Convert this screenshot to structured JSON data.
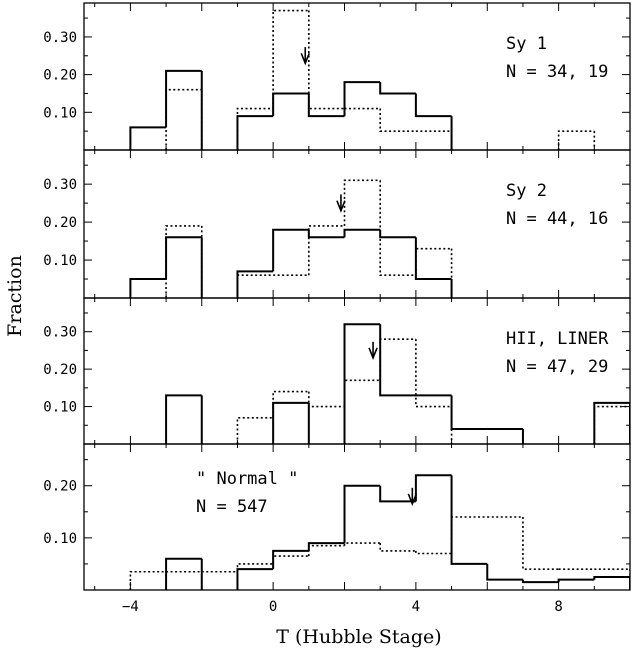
{
  "chart_data": {
    "type": "bar",
    "xlabel": "T (Hubble Stage)",
    "ylabel": "Fraction",
    "xlim": [
      -5.3,
      10
    ],
    "x_ticks": [
      -4,
      0,
      4,
      8
    ],
    "x_tick_labels": [
      "−4",
      "0",
      "4",
      "8"
    ],
    "bin_edges": [
      -4,
      -3,
      -2,
      -1,
      0,
      1,
      2,
      3,
      4,
      5,
      6,
      7,
      8,
      9,
      10
    ],
    "panels": [
      {
        "name": "sy1",
        "label_line1": "Sy 1",
        "label_line2": "N = 34, 19",
        "ylim": [
          0,
          0.39
        ],
        "y_ticks": [
          0.1,
          0.2,
          0.3
        ],
        "y_tick_labels": [
          "0.10",
          "0.20",
          "0.30"
        ],
        "series": [
          {
            "style": "solid",
            "values": [
              0.06,
              0.21,
              0,
              0.09,
              0.15,
              0.09,
              0.18,
              0.15,
              0.09,
              0,
              0,
              0,
              0,
              0
            ]
          },
          {
            "style": "dotted",
            "values": [
              0,
              0.16,
              0,
              0.11,
              0.37,
              0.11,
              0.11,
              0.05,
              0.05,
              0,
              0,
              0,
              0.05,
              0
            ]
          }
        ],
        "arrow_x": 0.9
      },
      {
        "name": "sy2",
        "label_line1": "Sy 2",
        "label_line2": "N = 44, 16",
        "ylim": [
          0,
          0.39
        ],
        "y_ticks": [
          0.1,
          0.2,
          0.3
        ],
        "y_tick_labels": [
          "0.10",
          "0.20",
          "0.30"
        ],
        "series": [
          {
            "style": "solid",
            "values": [
              0.05,
              0.16,
              0,
              0.07,
              0.18,
              0.16,
              0.18,
              0.16,
              0.05,
              0,
              0,
              0,
              0,
              0
            ]
          },
          {
            "style": "dotted",
            "values": [
              0,
              0.19,
              0,
              0.06,
              0.06,
              0.19,
              0.31,
              0.06,
              0.13,
              0,
              0,
              0,
              0,
              0
            ]
          }
        ],
        "arrow_x": 1.9
      },
      {
        "name": "hii-liner",
        "label_line1": "HII, LINER",
        "label_line2": "N = 47, 29",
        "ylim": [
          0,
          0.39
        ],
        "y_ticks": [
          0.1,
          0.2,
          0.3
        ],
        "y_tick_labels": [
          "0.10",
          "0.20",
          "0.30"
        ],
        "series": [
          {
            "style": "solid",
            "values": [
              0,
              0.13,
              0,
              0,
              0.11,
              0,
              0.32,
              0.13,
              0.13,
              0.04,
              0.04,
              0,
              0,
              0.11
            ]
          },
          {
            "style": "dotted",
            "values": [
              0,
              0,
              0,
              0.07,
              0.14,
              0.1,
              0.17,
              0.28,
              0.1,
              0,
              0,
              0,
              0,
              0.1
            ]
          }
        ],
        "arrow_x": 2.8
      },
      {
        "name": "normal",
        "label_line1": "\" Normal \"",
        "label_line2": "N = 547",
        "ylim": [
          0,
          0.28
        ],
        "y_ticks": [
          0.1,
          0.2
        ],
        "y_tick_labels": [
          "0.10",
          "0.20"
        ],
        "series": [
          {
            "style": "solid",
            "values": [
              0,
              0.06,
              0,
              0.04,
              0.075,
              0.09,
              0.2,
              0.17,
              0.22,
              0.05,
              0.02,
              0.015,
              0.02,
              0.025
            ]
          },
          {
            "style": "dotted",
            "values": [
              0.035,
              0.035,
              0.035,
              0.05,
              0.065,
              0.085,
              0.09,
              0.075,
              0.07,
              0.14,
              0.14,
              0.04,
              0.04,
              0.04
            ]
          }
        ],
        "arrow_x": 3.9
      }
    ]
  }
}
